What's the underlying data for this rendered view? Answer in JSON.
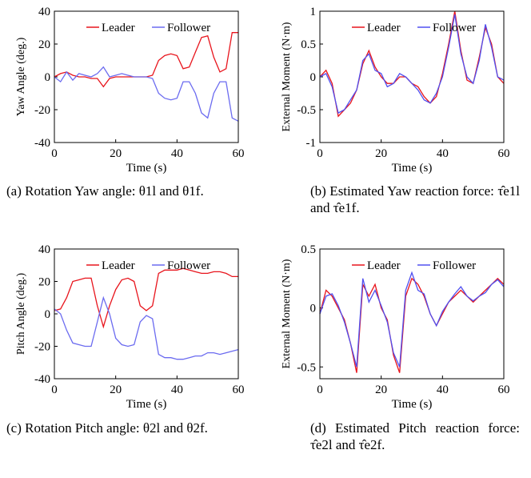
{
  "chart_data": [
    {
      "type": "line",
      "ylabel": "Yaw Angle (deg.)",
      "xlabel": "Time (s)",
      "caption": "(a) Rotation Yaw angle: θ1l and θ1f.",
      "x": [
        0,
        2,
        4,
        6,
        8,
        10,
        12,
        14,
        16,
        18,
        20,
        22,
        24,
        26,
        28,
        30,
        32,
        34,
        36,
        38,
        40,
        42,
        44,
        46,
        48,
        50,
        52,
        54,
        56,
        58,
        60
      ],
      "series": [
        {
          "name": "Leader",
          "color": "#e8141c",
          "values": [
            0,
            2,
            3,
            1,
            0,
            0,
            -1,
            -1,
            -6,
            -1,
            0,
            0,
            0,
            0,
            0,
            0,
            1,
            10,
            13,
            14,
            13,
            5,
            6,
            15,
            24,
            25,
            12,
            3,
            5,
            27,
            27
          ]
        },
        {
          "name": "Follower",
          "color": "#6b6bf0",
          "values": [
            0,
            -3,
            3,
            -2,
            2,
            1,
            0,
            2,
            6,
            0,
            1,
            2,
            1,
            0,
            0,
            0,
            -1,
            -10,
            -13,
            -14,
            -13,
            -3,
            -3,
            -10,
            -22,
            -25,
            -10,
            -3,
            -3,
            -25,
            -27
          ]
        }
      ],
      "xlim": [
        0,
        60
      ],
      "xticks": [
        0,
        20,
        40,
        60
      ],
      "ylim": [
        -40,
        40
      ],
      "yticks": [
        -40,
        -20,
        0,
        20,
        40
      ]
    },
    {
      "type": "line",
      "ylabel": "External Moment (N·m)",
      "xlabel": "Time (s)",
      "caption": "(b) Estimated Yaw reaction force: τ̂e1l and τ̂e1f.",
      "x": [
        0,
        2,
        4,
        6,
        8,
        10,
        12,
        14,
        16,
        18,
        20,
        22,
        24,
        26,
        28,
        30,
        32,
        34,
        36,
        38,
        40,
        42,
        44,
        46,
        48,
        50,
        52,
        54,
        56,
        58,
        60
      ],
      "series": [
        {
          "name": "Leader",
          "color": "#e8141c",
          "values": [
            0,
            0.1,
            -0.1,
            -0.6,
            -0.5,
            -0.4,
            -0.2,
            0.2,
            0.4,
            0.15,
            0,
            -0.1,
            -0.1,
            0,
            0,
            -0.1,
            -0.15,
            -0.3,
            -0.4,
            -0.3,
            0.05,
            0.5,
            1,
            0.4,
            -0.05,
            -0.1,
            0.3,
            0.75,
            0.5,
            0,
            -0.1
          ]
        },
        {
          "name": "Follower",
          "color": "#5050f0",
          "values": [
            0,
            0.05,
            -0.15,
            -0.55,
            -0.5,
            -0.35,
            -0.2,
            0.25,
            0.35,
            0.1,
            0.05,
            -0.15,
            -0.1,
            0.05,
            0,
            -0.1,
            -0.2,
            -0.35,
            -0.4,
            -0.25,
            0,
            0.45,
            0.95,
            0.35,
            0,
            -0.1,
            0.25,
            0.8,
            0.45,
            0,
            -0.05
          ]
        }
      ],
      "xlim": [
        0,
        60
      ],
      "xticks": [
        0,
        20,
        40,
        60
      ],
      "ylim": [
        -1,
        1
      ],
      "yticks": [
        -1,
        -0.5,
        0,
        0.5,
        1
      ]
    },
    {
      "type": "line",
      "ylabel": "Pitch Angle (deg.)",
      "xlabel": "Time (s)",
      "caption": "(c) Rotation Pitch angle: θ2l and θ2f.",
      "x": [
        0,
        2,
        4,
        6,
        8,
        10,
        12,
        14,
        16,
        18,
        20,
        22,
        24,
        26,
        28,
        30,
        32,
        34,
        36,
        38,
        40,
        42,
        44,
        46,
        48,
        50,
        52,
        54,
        56,
        58,
        60
      ],
      "series": [
        {
          "name": "Leader",
          "color": "#e8141c",
          "values": [
            2,
            3,
            10,
            20,
            21,
            22,
            22,
            5,
            -8,
            5,
            15,
            21,
            22,
            20,
            5,
            2,
            5,
            25,
            27,
            27,
            27,
            28,
            27,
            26,
            25,
            25,
            26,
            26,
            25,
            23,
            23
          ]
        },
        {
          "name": "Follower",
          "color": "#6b6bf0",
          "values": [
            3,
            0,
            -10,
            -18,
            -19,
            -20,
            -20,
            -5,
            10,
            0,
            -15,
            -19,
            -20,
            -19,
            -5,
            -1,
            -3,
            -25,
            -27,
            -27,
            -28,
            -28,
            -27,
            -26,
            -26,
            -24,
            -24,
            -25,
            -24,
            -23,
            -22
          ]
        }
      ],
      "xlim": [
        0,
        60
      ],
      "xticks": [
        0,
        20,
        40,
        60
      ],
      "ylim": [
        -40,
        40
      ],
      "yticks": [
        -40,
        -20,
        0,
        20,
        40
      ]
    },
    {
      "type": "line",
      "ylabel": "External Moment (N·m)",
      "xlabel": "Time (s)",
      "caption": "(d) Estimated Pitch reaction force: τ̂e2l and τ̂e2f.",
      "x": [
        0,
        2,
        4,
        6,
        8,
        10,
        12,
        14,
        16,
        18,
        20,
        22,
        24,
        26,
        28,
        30,
        32,
        34,
        36,
        38,
        40,
        42,
        44,
        46,
        48,
        50,
        52,
        54,
        56,
        58,
        60
      ],
      "series": [
        {
          "name": "Leader",
          "color": "#e8141c",
          "values": [
            -0.05,
            0.15,
            0.1,
            0,
            -0.1,
            -0.3,
            -0.55,
            0.2,
            0.1,
            0.2,
            0,
            -0.1,
            -0.4,
            -0.55,
            0.1,
            0.25,
            0.2,
            0.1,
            -0.05,
            -0.15,
            -0.05,
            0.05,
            0.1,
            0.15,
            0.1,
            0.05,
            0.1,
            0.15,
            0.2,
            0.25,
            0.2
          ]
        },
        {
          "name": "Follower",
          "color": "#5050f0",
          "values": [
            -0.05,
            0.1,
            0.12,
            0.02,
            -0.12,
            -0.3,
            -0.5,
            0.25,
            0.05,
            0.15,
            0.02,
            -0.12,
            -0.38,
            -0.5,
            0.15,
            0.3,
            0.15,
            0.12,
            -0.05,
            -0.15,
            -0.03,
            0.05,
            0.12,
            0.18,
            0.1,
            0.06,
            0.1,
            0.13,
            0.2,
            0.24,
            0.18
          ]
        }
      ],
      "xlim": [
        0,
        60
      ],
      "xticks": [
        0,
        20,
        40,
        60
      ],
      "ylim": [
        -0.6,
        0.5
      ],
      "yticks": [
        -0.5,
        0,
        0.5
      ]
    }
  ]
}
